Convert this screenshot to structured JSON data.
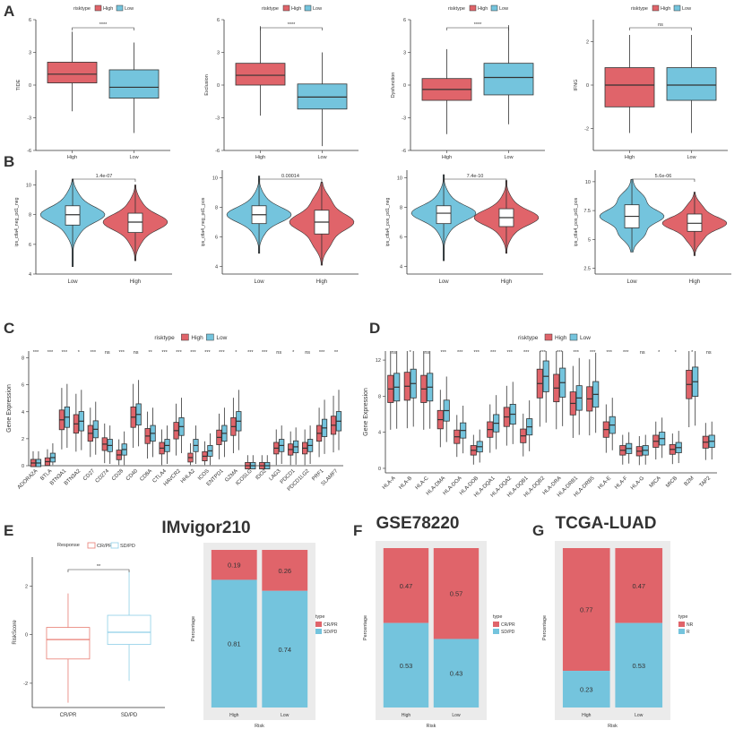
{
  "colors": {
    "high": "#E0646A",
    "low": "#74C4DD",
    "crpr": "#E87E74",
    "sdpd": "#8ECFE8",
    "box_fill_white": "#ffffff",
    "stroke": "#333333"
  },
  "risk_legend": {
    "title": "risktype",
    "high": "High",
    "low": "Low"
  },
  "panel_labels": {
    "a": "A",
    "b": "B",
    "c": "C",
    "d": "D",
    "e": "E",
    "f": "F",
    "g": "G"
  },
  "chart_data": [
    {
      "id": "A1",
      "panel": "A",
      "type": "box",
      "ylabel": "TIDE",
      "ylim": [
        -6,
        6
      ],
      "yticks": [
        -6,
        -3,
        0,
        3,
        6
      ],
      "significance": "****",
      "categories": [
        "High",
        "Low"
      ],
      "boxes": [
        {
          "group": "High",
          "min": -2.4,
          "q1": 0.2,
          "median": 1.0,
          "q3": 2.1,
          "max": 4.9
        },
        {
          "group": "Low",
          "min": -4.4,
          "q1": -1.2,
          "median": -0.2,
          "q3": 1.4,
          "max": 3.9
        }
      ]
    },
    {
      "id": "A2",
      "panel": "A",
      "type": "box",
      "ylabel": "Exclusion",
      "ylim": [
        -6,
        6
      ],
      "yticks": [
        -6,
        -3,
        0,
        3,
        6
      ],
      "significance": "****",
      "categories": [
        "High",
        "Low"
      ],
      "boxes": [
        {
          "group": "High",
          "min": -2.8,
          "q1": 0.0,
          "median": 0.9,
          "q3": 2.0,
          "max": 5.4
        },
        {
          "group": "Low",
          "min": -5.6,
          "q1": -2.2,
          "median": -1.1,
          "q3": 0.1,
          "max": 3.0
        }
      ]
    },
    {
      "id": "A3",
      "panel": "A",
      "type": "box",
      "ylabel": "Dysfunction",
      "ylim": [
        -6,
        6
      ],
      "yticks": [
        -6,
        -3,
        0,
        3,
        6
      ],
      "significance": "****",
      "categories": [
        "High",
        "Low"
      ],
      "boxes": [
        {
          "group": "High",
          "min": -4.5,
          "q1": -1.4,
          "median": -0.4,
          "q3": 0.6,
          "max": 3.3
        },
        {
          "group": "Low",
          "min": -3.6,
          "q1": -0.9,
          "median": 0.7,
          "q3": 2.0,
          "max": 5.5
        }
      ]
    },
    {
      "id": "A4",
      "panel": "A",
      "type": "box",
      "ylabel": "IFNG",
      "ylim": [
        -3,
        3
      ],
      "yticks": [
        -2,
        0,
        2
      ],
      "significance": "ns",
      "categories": [
        "High",
        "Low"
      ],
      "boxes": [
        {
          "group": "High",
          "min": -2.2,
          "q1": -1.0,
          "median": 0.0,
          "q3": 0.8,
          "max": 2.3
        },
        {
          "group": "Low",
          "min": -2.2,
          "q1": -0.7,
          "median": 0.0,
          "q3": 0.8,
          "max": 2.3
        }
      ]
    },
    {
      "id": "B1",
      "panel": "B",
      "type": "violin",
      "ylabel": "ips_ctla4_neg_pd1_neg",
      "ylim": [
        4,
        11
      ],
      "yticks": [
        4,
        6,
        8,
        10
      ],
      "pvalue": "1.4e-07",
      "categories": [
        "Low",
        "High"
      ],
      "groups": [
        {
          "group": "Low",
          "min": 4.5,
          "q1": 7.3,
          "median": 8.0,
          "q3": 8.6,
          "max": 10.4
        },
        {
          "group": "High",
          "min": 4.9,
          "q1": 6.8,
          "median": 7.5,
          "q3": 8.1,
          "max": 10.0
        }
      ]
    },
    {
      "id": "B2",
      "panel": "B",
      "type": "violin",
      "ylabel": "ips_ctla4_neg_pd1_pos",
      "ylim": [
        3.5,
        10.5
      ],
      "yticks": [
        4,
        6,
        8,
        10
      ],
      "pvalue": "0.00014",
      "categories": [
        "Low",
        "High"
      ],
      "groups": [
        {
          "group": "Low",
          "min": 4.9,
          "q1": 6.9,
          "median": 7.5,
          "q3": 8.1,
          "max": 10.1
        },
        {
          "group": "High",
          "min": 4.1,
          "q1": 6.2,
          "median": 7.0,
          "q3": 7.8,
          "max": 9.7
        }
      ]
    },
    {
      "id": "B3",
      "panel": "B",
      "type": "violin",
      "ylabel": "ips_ctla4_pos_pd1_neg",
      "ylim": [
        3.5,
        10.5
      ],
      "yticks": [
        4,
        6,
        8,
        10
      ],
      "pvalue": "7.4e-10",
      "categories": [
        "Low",
        "High"
      ],
      "groups": [
        {
          "group": "Low",
          "min": 4.4,
          "q1": 6.9,
          "median": 7.6,
          "q3": 8.1,
          "max": 10.2
        },
        {
          "group": "High",
          "min": 4.9,
          "q1": 6.7,
          "median": 7.3,
          "q3": 7.9,
          "max": 9.8
        }
      ]
    },
    {
      "id": "B4",
      "panel": "B",
      "type": "violin",
      "ylabel": "ips_ctla4_pos_pd1_pos",
      "ylim": [
        2,
        11
      ],
      "yticks": [
        2.5,
        5.0,
        7.5,
        10.0
      ],
      "pvalue": "5.6e-06",
      "categories": [
        "Low",
        "High"
      ],
      "groups": [
        {
          "group": "Low",
          "min": 3.9,
          "q1": 6.0,
          "median": 7.0,
          "q3": 8.0,
          "max": 10.2
        },
        {
          "group": "High",
          "min": 3.6,
          "q1": 5.7,
          "median": 6.4,
          "q3": 7.2,
          "max": 9.1
        }
      ]
    },
    {
      "id": "C",
      "panel": "C",
      "type": "grouped-box",
      "ylabel": "Gene Expression",
      "ylim": [
        0,
        8.5
      ],
      "yticks": [
        0,
        2,
        4,
        6,
        8
      ],
      "legend_title": "risktype",
      "series_names": [
        "High",
        "Low"
      ],
      "genes": [
        "ADORA2A",
        "BTLA",
        "BTN3A1",
        "BTN3A2",
        "CD27",
        "CD274",
        "CD28",
        "CD40",
        "CD8A",
        "CTLA4",
        "HAVCR2",
        "HHLA2",
        "ICOS",
        "ENTPD1",
        "GZMA",
        "ICOSLG",
        "IDO2",
        "LAG3",
        "PDCD1",
        "PDCD1LG2",
        "PRF1",
        "SLAMF7"
      ],
      "significance": [
        "***",
        "***",
        "***",
        "*",
        "***",
        "ns",
        "***",
        "ns",
        "**",
        "***",
        "***",
        "***",
        "***",
        "***",
        "*",
        "***",
        "***",
        "ns",
        "*",
        "ns",
        "***",
        "**"
      ],
      "high_median": [
        0.2,
        0.3,
        3.4,
        3.1,
        2.4,
        1.6,
        0.8,
        3.6,
        2.2,
        1.3,
        2.6,
        0.6,
        0.7,
        2.1,
        2.9,
        0.0,
        0.0,
        1.3,
        1.2,
        1.3,
        2.4,
        3.0
      ],
      "low_median": [
        0.2,
        0.6,
        3.6,
        3.3,
        2.7,
        1.5,
        1.2,
        3.8,
        2.4,
        1.5,
        2.9,
        1.5,
        1.1,
        2.4,
        3.3,
        0.0,
        0.0,
        1.5,
        1.4,
        1.5,
        2.8,
        3.3
      ]
    },
    {
      "id": "D",
      "panel": "D",
      "type": "grouped-box",
      "ylabel": "Gene Expression",
      "ylim": [
        -0.5,
        13
      ],
      "yticks": [
        0,
        4,
        8,
        12
      ],
      "legend_title": "risktype",
      "series_names": [
        "High",
        "Low"
      ],
      "genes": [
        "HLA-A",
        "HLA-B",
        "HLA-C",
        "HLA-DMA",
        "HLA-DOA",
        "HLA-DOB",
        "HLA-DQA1",
        "HLA-DQA2",
        "HLA-DQB1",
        "HLA-DQB2",
        "HLA-DRA",
        "HLA-DRB1",
        "HLA-DRB5",
        "HLA-E",
        "HLA-F",
        "HLA-G",
        "MICA",
        "MICB",
        "B2M",
        "TAP2"
      ],
      "significance": [
        "ns",
        "*",
        "ns",
        "***",
        "***",
        "***",
        "***",
        "***",
        "***",
        "***",
        "***",
        "***",
        "***",
        "***",
        "***",
        "ns",
        "*",
        "*",
        "*",
        "ns"
      ],
      "high_median": [
        8.8,
        9.1,
        8.8,
        5.4,
        3.5,
        2.0,
        4.3,
        5.7,
        3.6,
        9.4,
        8.9,
        7.2,
        7.7,
        4.3,
        2.0,
        1.9,
        3.0,
        2.1,
        9.3,
        2.9
      ],
      "low_median": [
        9.0,
        9.4,
        9.0,
        6.4,
        4.2,
        2.4,
        5.0,
        6.0,
        4.6,
        10.2,
        9.5,
        7.8,
        8.2,
        4.8,
        2.2,
        2.0,
        3.3,
        2.3,
        9.6,
        3.0
      ]
    },
    {
      "id": "E1",
      "panel": "E",
      "type": "box",
      "title": "IMvigor210",
      "ylabel": "RiskScore",
      "ylim": [
        -3,
        3.2
      ],
      "yticks": [
        -2,
        0,
        2
      ],
      "legend_title": "Response",
      "legend": [
        "CR/PR",
        "SD/PD"
      ],
      "significance": "**",
      "categories": [
        "CR/PR",
        "SD/PD"
      ],
      "boxes": [
        {
          "group": "CR/PR",
          "min": -2.8,
          "q1": -1.0,
          "median": -0.2,
          "q3": 0.3,
          "max": 1.7
        },
        {
          "group": "SD/PD",
          "min": -1.9,
          "q1": -0.4,
          "median": 0.1,
          "q3": 0.8,
          "max": 2.6
        }
      ]
    },
    {
      "id": "E2",
      "panel": "E",
      "type": "stacked-bar",
      "xlabel": "Risk",
      "ylabel": "Percentage",
      "categories": [
        "High",
        "Low"
      ],
      "legend_title": "type",
      "series": [
        {
          "name": "CR/PR",
          "values": [
            0.19,
            0.26
          ]
        },
        {
          "name": "SD/PD",
          "values": [
            0.81,
            0.74
          ]
        }
      ]
    },
    {
      "id": "F",
      "panel": "F",
      "type": "stacked-bar",
      "title": "GSE78220",
      "xlabel": "Risk",
      "ylabel": "Percentage",
      "categories": [
        "High",
        "Low"
      ],
      "legend_title": "type",
      "series": [
        {
          "name": "CR/PR",
          "values": [
            0.47,
            0.57
          ]
        },
        {
          "name": "SD/PD",
          "values": [
            0.53,
            0.43
          ]
        }
      ]
    },
    {
      "id": "G",
      "panel": "G",
      "type": "stacked-bar",
      "title": "TCGA-LUAD",
      "xlabel": "Risk",
      "ylabel": "Percentage",
      "categories": [
        "High",
        "Low"
      ],
      "legend_title": "type",
      "series": [
        {
          "name": "NR",
          "values": [
            0.77,
            0.47
          ]
        },
        {
          "name": "R",
          "values": [
            0.23,
            0.53
          ]
        }
      ]
    }
  ]
}
